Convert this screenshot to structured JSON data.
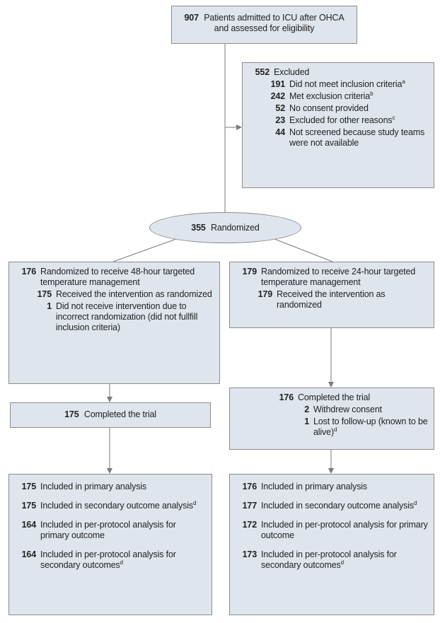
{
  "enrollment": {
    "count": 907,
    "text": "Patients admitted to ICU after OHCA and assessed for eligibility"
  },
  "excluded": {
    "count": 552,
    "text": "Excluded",
    "reasons": [
      {
        "count": 191,
        "text": "Did not meet inclusion criteria",
        "note": "a"
      },
      {
        "count": 242,
        "text": "Met exclusion criteria",
        "note": "b"
      },
      {
        "count": 52,
        "text": "No consent provided"
      },
      {
        "count": 23,
        "text": "Excluded for other reasons",
        "note": "c"
      },
      {
        "count": 44,
        "text": "Not screened because study teams were not available"
      }
    ]
  },
  "randomized": {
    "count": 355,
    "text": "Randomized"
  },
  "arms": [
    {
      "allocation": {
        "count": 176,
        "text": "Randomized to receive 48-hour targeted temperature management",
        "items": [
          {
            "count": 175,
            "text": "Received the intervention as randomized"
          },
          {
            "count": 1,
            "text": "Did not receive intervention due to incorrect randomization (did not fullfill inclusion criteria)"
          }
        ]
      },
      "completion": {
        "count": 175,
        "text": "Completed the trial"
      },
      "analysis": [
        {
          "count": 175,
          "text": "Included in primary analysis"
        },
        {
          "count": 175,
          "text": "Included in secondary outcome analysis",
          "note": "d"
        },
        {
          "count": 164,
          "text": "Included in per-protocol analysis for primary outcome"
        },
        {
          "count": 164,
          "text": "Included in per-protocol analysis for secondary outcomes",
          "note": "d"
        }
      ]
    },
    {
      "allocation": {
        "count": 179,
        "text": "Randomized to receive 24-hour targeted temperature management",
        "items": [
          {
            "count": 179,
            "text": "Received the intervention as randomized"
          }
        ]
      },
      "completion": {
        "count": 176,
        "text": "Completed the trial",
        "items": [
          {
            "count": 2,
            "text": "Withdrew consent"
          },
          {
            "count": 1,
            "text": "Lost to follow-up (known to be alive)",
            "note": "d"
          }
        ]
      },
      "analysis": [
        {
          "count": 176,
          "text": "Included in primary analysis"
        },
        {
          "count": 177,
          "text": "Included in secondary outcome analysis",
          "note": "d"
        },
        {
          "count": 172,
          "text": "Included in per-protocol analysis for primary outcome"
        },
        {
          "count": 173,
          "text": "Included in per-protocol analysis for secondary outcomes",
          "note": "d"
        }
      ]
    }
  ]
}
